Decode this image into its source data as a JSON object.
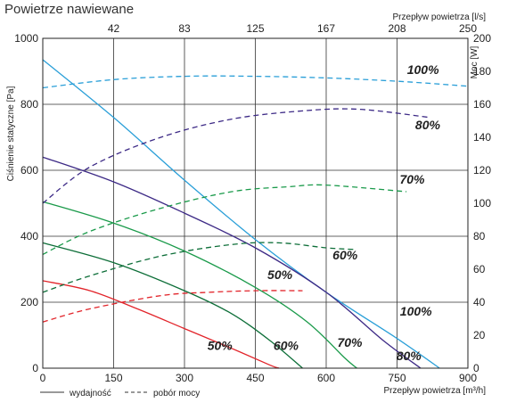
{
  "title": "Powietrze nawiewane",
  "chart_data": {
    "type": "line",
    "title": "Powietrze nawiewane",
    "xlabel": "Przepływ powietrza [m³/h]",
    "x2label": "Przepływ powietrza [l/s]",
    "ylabel": "Ciśnienie statyczne [Pa]",
    "y2label": "Moc [W]",
    "xlim": [
      0,
      900
    ],
    "ylim": [
      0,
      1000
    ],
    "y2lim": [
      0,
      200
    ],
    "x_ticks": [
      0,
      150,
      300,
      450,
      600,
      750,
      900
    ],
    "y_ticks": [
      0,
      200,
      400,
      600,
      800,
      1000
    ],
    "y2_ticks": [
      0,
      20,
      40,
      60,
      80,
      100,
      120,
      140,
      160,
      180,
      200
    ],
    "x2_ticks": [
      {
        "label": "42",
        "x": 150
      },
      {
        "label": "83",
        "x": 300
      },
      {
        "label": "125",
        "x": 450
      },
      {
        "label": "167",
        "x": 600
      },
      {
        "label": "208",
        "x": 750
      },
      {
        "label": "250",
        "x": 900
      }
    ],
    "grid": true,
    "legend": [
      {
        "label": "wydajność",
        "style": "solid"
      },
      {
        "label": "pobór mocy",
        "style": "dashed"
      }
    ],
    "series": [
      {
        "label": "100%",
        "kind": "wydajność",
        "color": "#2a9fd8",
        "label_at": [
          790,
          160
        ],
        "points": [
          [
            0,
            935
          ],
          [
            150,
            760
          ],
          [
            300,
            570
          ],
          [
            450,
            390
          ],
          [
            600,
            230
          ],
          [
            750,
            90
          ],
          [
            840,
            0
          ]
        ]
      },
      {
        "label": "80%",
        "kind": "wydajność",
        "color": "#3d2a86",
        "label_at": [
          775,
          25
        ],
        "points": [
          [
            0,
            640
          ],
          [
            150,
            565
          ],
          [
            300,
            470
          ],
          [
            450,
            365
          ],
          [
            600,
            230
          ],
          [
            720,
            85
          ],
          [
            800,
            0
          ]
        ]
      },
      {
        "label": "70%",
        "kind": "wydajność",
        "color": "#1a9a4a",
        "label_at": [
          650,
          65
        ],
        "points": [
          [
            0,
            505
          ],
          [
            150,
            440
          ],
          [
            300,
            355
          ],
          [
            450,
            245
          ],
          [
            560,
            140
          ],
          [
            640,
            30
          ],
          [
            665,
            0
          ]
        ]
      },
      {
        "label": "60%",
        "kind": "wydajność",
        "color": "#0d6e38",
        "label_at": [
          515,
          55
        ],
        "points": [
          [
            0,
            380
          ],
          [
            150,
            320
          ],
          [
            300,
            235
          ],
          [
            400,
            165
          ],
          [
            480,
            85
          ],
          [
            550,
            0
          ]
        ]
      },
      {
        "label": "50%",
        "kind": "wydajność",
        "color": "#e2242a",
        "label_at": [
          375,
          55
        ],
        "points": [
          [
            0,
            265
          ],
          [
            100,
            235
          ],
          [
            200,
            180
          ],
          [
            300,
            120
          ],
          [
            400,
            60
          ],
          [
            480,
            10
          ],
          [
            500,
            0
          ]
        ]
      },
      {
        "label": "100%",
        "kind": "pobór mocy",
        "color": "#2a9fd8",
        "label_at": [
          805,
          892
        ],
        "points": [
          [
            0,
            170
          ],
          [
            150,
            175
          ],
          [
            300,
            177
          ],
          [
            450,
            177
          ],
          [
            600,
            176
          ],
          [
            750,
            174
          ],
          [
            900,
            171
          ]
        ]
      },
      {
        "label": "80%",
        "kind": "pobór mocy",
        "color": "#3d2a86",
        "label_at": [
          815,
          725
        ],
        "points": [
          [
            0,
            100
          ],
          [
            100,
            122
          ],
          [
            250,
            140
          ],
          [
            400,
            151
          ],
          [
            550,
            156
          ],
          [
            670,
            157
          ],
          [
            820,
            152
          ]
        ]
      },
      {
        "label": "70%",
        "kind": "pobór mocy",
        "color": "#1a9a4a",
        "label_at": [
          782,
          560
        ],
        "points": [
          [
            0,
            69
          ],
          [
            100,
            83
          ],
          [
            250,
            97
          ],
          [
            400,
            107
          ],
          [
            520,
            110
          ],
          [
            600,
            111
          ],
          [
            770,
            107
          ]
        ]
      },
      {
        "label": "60%",
        "kind": "pobór mocy",
        "color": "#0d6e38",
        "label_at": [
          640,
          330
        ],
        "points": [
          [
            0,
            46
          ],
          [
            100,
            56
          ],
          [
            250,
            68
          ],
          [
            400,
            75
          ],
          [
            500,
            76
          ],
          [
            600,
            73
          ],
          [
            660,
            72
          ]
        ]
      },
      {
        "label": "50%",
        "kind": "pobór mocy",
        "color": "#e2242a",
        "label_at": [
          502,
          270
        ],
        "points": [
          [
            0,
            28
          ],
          [
            100,
            36
          ],
          [
            250,
            44
          ],
          [
            350,
            46
          ],
          [
            450,
            47
          ],
          [
            550,
            47
          ]
        ]
      }
    ]
  }
}
